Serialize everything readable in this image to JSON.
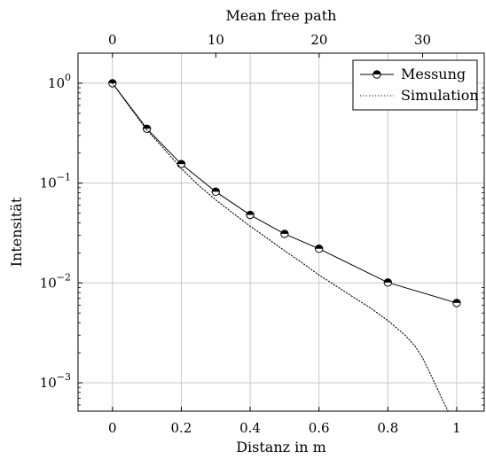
{
  "chart_data": {
    "type": "line",
    "title": "",
    "xlabel": "Distanz in m",
    "ylabel": "Intensität",
    "x2label": "Mean free path",
    "xlim": [
      -0.1,
      1.08
    ],
    "ylim": [
      0.00052,
      2.0
    ],
    "yscale": "log",
    "grid": true,
    "legend_position": "top-right",
    "x_ticks": [
      0,
      0.2,
      0.4,
      0.6,
      0.8,
      1
    ],
    "x_tick_labels": [
      "0",
      "0.2",
      "0.4",
      "0.6",
      "0.8",
      "1"
    ],
    "x2_ticks": [
      0,
      10,
      20,
      30
    ],
    "x2_tick_labels": [
      "0",
      "10",
      "20",
      "30"
    ],
    "x2_per_x": 33.3,
    "y_ticks": [
      1,
      0.1,
      0.01,
      0.001
    ],
    "y_tick_labels": [
      {
        "base": "10",
        "exp": "0"
      },
      {
        "base": "10",
        "exp": "−1"
      },
      {
        "base": "10",
        "exp": "−2"
      },
      {
        "base": "10",
        "exp": "−3"
      }
    ],
    "series": [
      {
        "name": "Messung",
        "style": "solid-markers",
        "color": "#000000",
        "x": [
          0,
          0.1,
          0.2,
          0.3,
          0.4,
          0.5,
          0.6,
          0.8,
          1.0
        ],
        "y": [
          1.0,
          0.35,
          0.155,
          0.082,
          0.048,
          0.031,
          0.022,
          0.0101,
          0.0063
        ]
      },
      {
        "name": "Simulation",
        "style": "dotted",
        "color": "#000000",
        "x": [
          0,
          0.05,
          0.1,
          0.15,
          0.2,
          0.25,
          0.3,
          0.35,
          0.4,
          0.45,
          0.5,
          0.55,
          0.6,
          0.65,
          0.7,
          0.75,
          0.8,
          0.85,
          0.88,
          0.9,
          0.92,
          0.94,
          0.96,
          0.975
        ],
        "y": [
          1.0,
          0.58,
          0.34,
          0.22,
          0.14,
          0.095,
          0.068,
          0.05,
          0.037,
          0.028,
          0.021,
          0.016,
          0.012,
          0.0093,
          0.0072,
          0.0056,
          0.0042,
          0.003,
          0.0023,
          0.0018,
          0.0013,
          0.00093,
          0.00066,
          0.00052
        ]
      }
    ]
  }
}
